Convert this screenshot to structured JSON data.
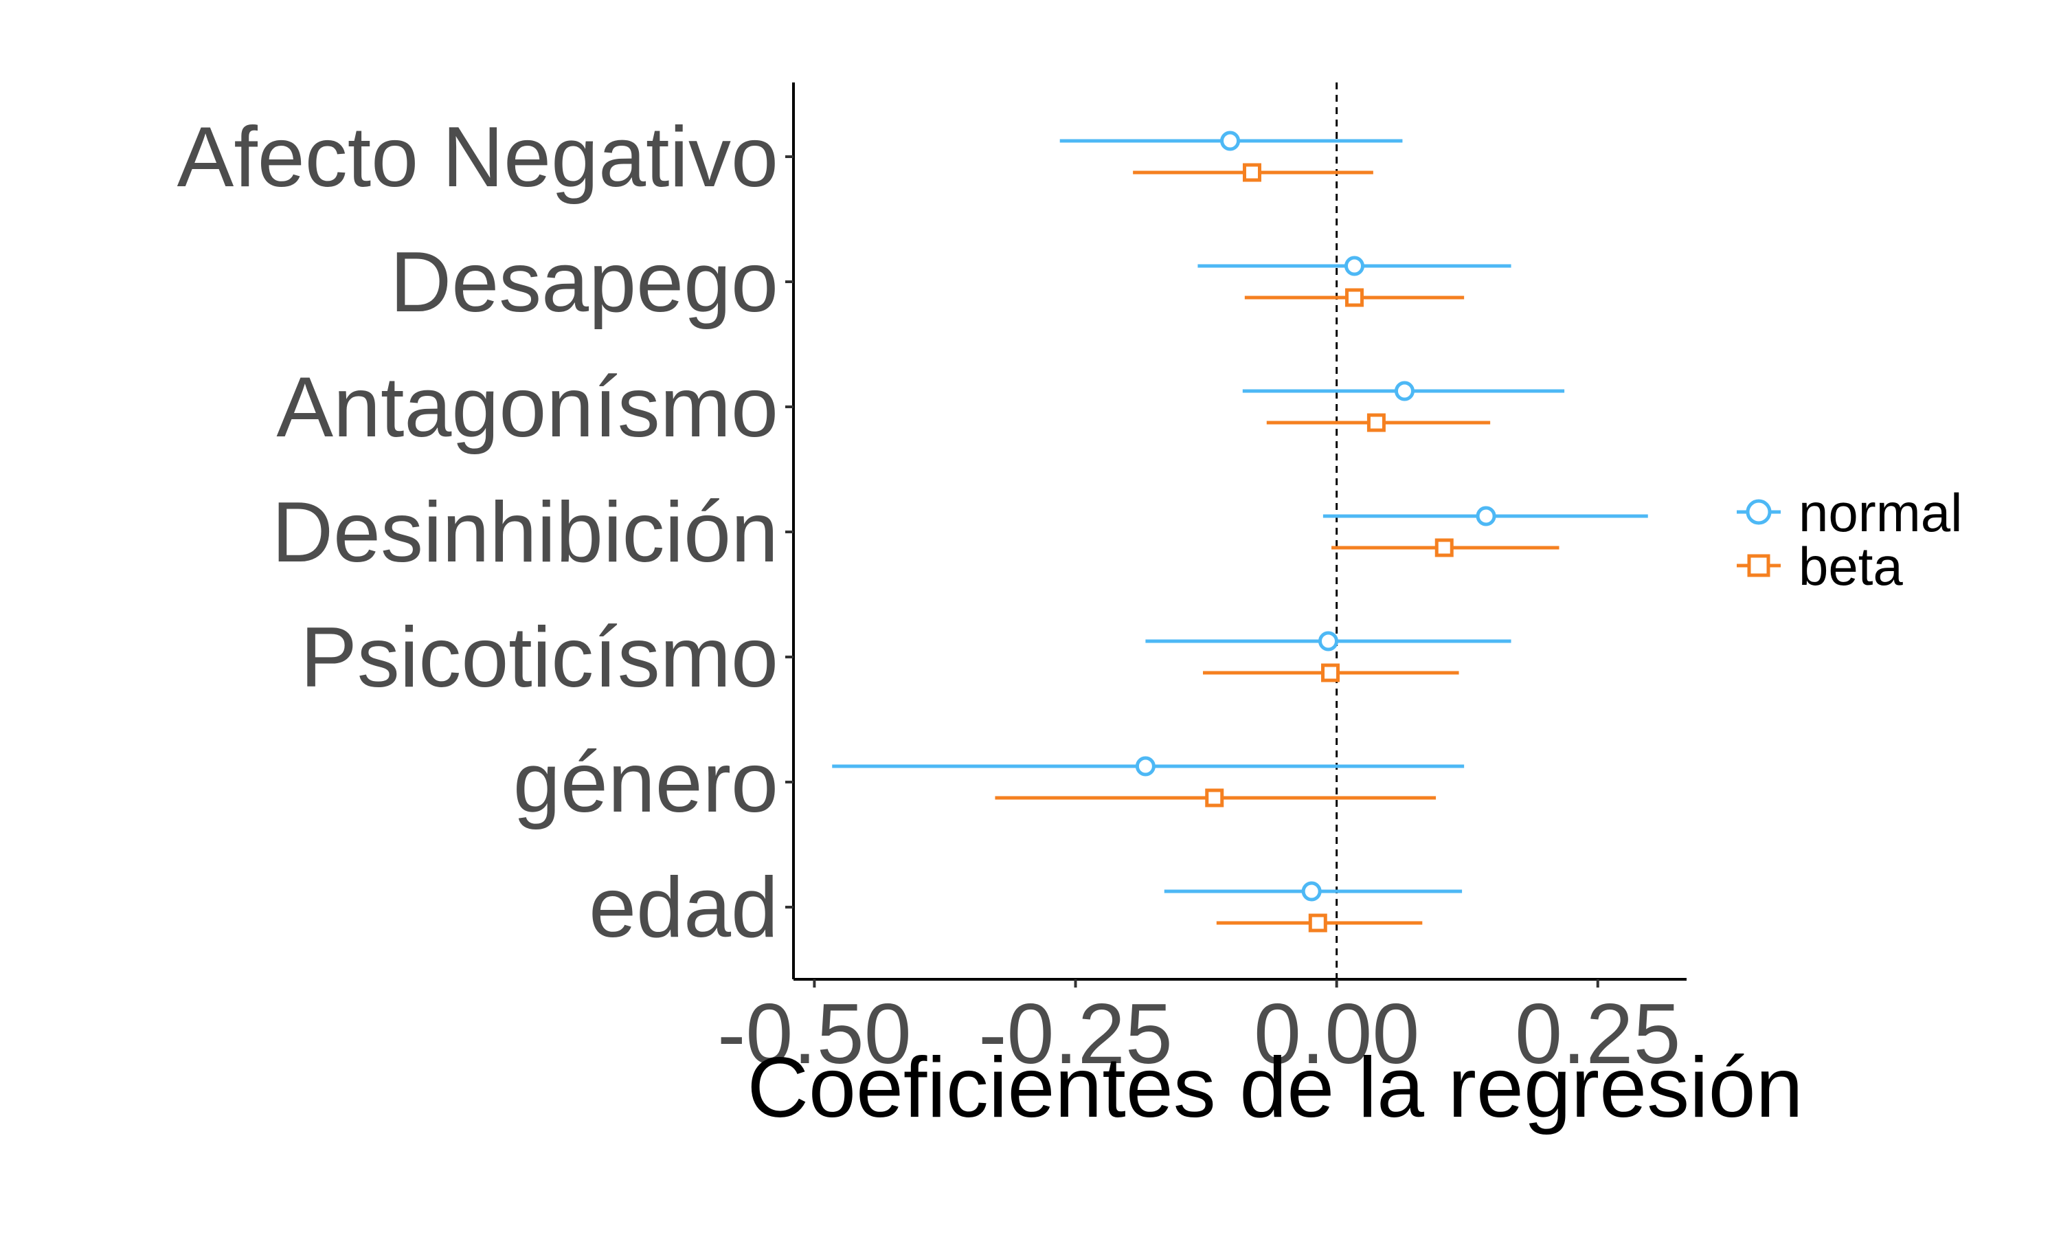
{
  "chart_data": {
    "type": "forest",
    "title": "",
    "xlabel": "Coeficientes de la regresión",
    "ylabel": "",
    "xlim": [
      -0.52,
      0.335
    ],
    "x_ticks": [
      -0.5,
      -0.25,
      0.0,
      0.25
    ],
    "x_tick_labels": [
      "-0.50",
      "-0.25",
      "0.00",
      "0.25"
    ],
    "reference_line": 0.0,
    "grid": false,
    "legend": "right",
    "categories": [
      "Afecto Negativo",
      "Desapego",
      "Antagonísmo",
      "Desinhibición",
      "Psicoticísmo",
      "género",
      "edad"
    ],
    "series": [
      {
        "name": "normal",
        "color": "#4db8f5",
        "marker": "circle",
        "estimate": [
          -0.102,
          0.017,
          0.065,
          0.143,
          -0.008,
          -0.183,
          -0.024
        ],
        "lower": [
          -0.265,
          -0.133,
          -0.09,
          -0.013,
          -0.183,
          -0.483,
          -0.165
        ],
        "upper": [
          0.063,
          0.167,
          0.218,
          0.298,
          0.167,
          0.122,
          0.12
        ]
      },
      {
        "name": "beta",
        "color": "#f58020",
        "marker": "square",
        "estimate": [
          -0.081,
          0.017,
          0.038,
          0.103,
          -0.006,
          -0.117,
          -0.018
        ],
        "lower": [
          -0.195,
          -0.088,
          -0.067,
          -0.005,
          -0.128,
          -0.327,
          -0.115
        ],
        "upper": [
          0.035,
          0.122,
          0.147,
          0.213,
          0.117,
          0.095,
          0.082
        ]
      }
    ]
  }
}
